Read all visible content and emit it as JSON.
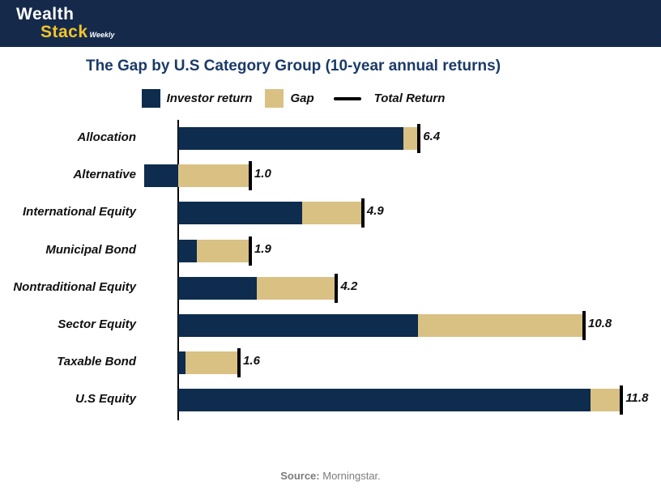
{
  "header": {
    "logo_line1": "Wealth",
    "logo_line2": "Stack",
    "logo_suffix": "Weekly"
  },
  "title": "The Gap by U.S Category Group (10-year annual returns)",
  "legend": {
    "investor": "Investor return",
    "gap": "Gap",
    "total": "Total Return"
  },
  "footer": {
    "source_label": "Source:",
    "source_value": "Morningstar."
  },
  "colors": {
    "header_bg": "#152a4b",
    "investor_bar": "#0d2c4e",
    "gap_bar": "#d9c184",
    "total_marker": "#000000",
    "title_text": "#1b3a68",
    "logo_yellow": "#f3c42c",
    "footer_gray": "#7c7c7c"
  },
  "chart_data": {
    "type": "bar",
    "orientation": "horizontal",
    "title": "The Gap by U.S Category Group (10-year annual returns)",
    "categories": [
      "Allocation",
      "Alternative",
      "International Equity",
      "Municipal Bond",
      "Nontraditional Equity",
      "Sector Equity",
      "Taxable Bond",
      "U.S Equity"
    ],
    "series": [
      {
        "name": "Investor return",
        "values": [
          6.0,
          -0.9,
          3.3,
          0.5,
          2.1,
          6.4,
          0.2,
          11.0
        ]
      },
      {
        "name": "Gap",
        "values": [
          0.4,
          1.9,
          1.6,
          1.4,
          2.1,
          4.4,
          1.4,
          0.8
        ]
      }
    ],
    "total_return_labels": [
      "6.4",
      "1.0",
      "4.9",
      "1.9",
      "4.2",
      "10.8",
      "1.6",
      "11.8"
    ],
    "legend_entries": [
      "Investor return",
      "Gap",
      "Total Return"
    ],
    "legend_position": "top",
    "xlim": [
      -1.0,
      12.5
    ],
    "grid": false,
    "axis_line": "vertical-at-zero"
  }
}
